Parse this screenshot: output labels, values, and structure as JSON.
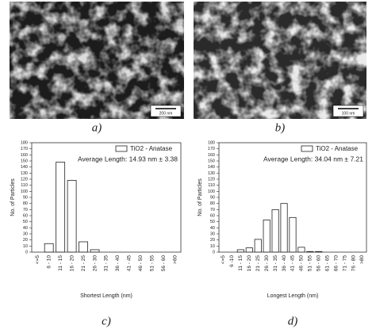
{
  "images": [
    {
      "scale_bar": "200 nm",
      "caption": "a)"
    },
    {
      "scale_bar": "100 nm",
      "caption": "b)"
    }
  ],
  "chart_data": [
    {
      "type": "bar",
      "caption": "c)",
      "annotation": "Average Length: 14.93 nm ± 3.38",
      "xlabel": "Shortest Length (nm)",
      "ylabel": "No. of Particles",
      "categories": [
        "<=5",
        "6 - 10",
        "11 - 15",
        "16 - 20",
        "21 - 25",
        "26 - 30",
        "31 - 35",
        "36 - 40",
        "41 - 45",
        "46 - 50",
        "51 - 55",
        "56 - 60",
        ">60"
      ],
      "series": [
        {
          "name": "TiO2 - Anatase",
          "color": "#ffffff",
          "values": [
            0,
            14,
            148,
            118,
            17,
            4,
            0,
            0,
            0,
            0,
            0,
            0,
            0
          ]
        }
      ],
      "ylim": [
        0,
        180
      ],
      "yticks": [
        0,
        10,
        20,
        30,
        40,
        50,
        60,
        70,
        80,
        90,
        100,
        110,
        120,
        130,
        140,
        150,
        160,
        170,
        180
      ],
      "legend": "top-right"
    },
    {
      "type": "bar",
      "caption": "d)",
      "annotation": "Average Length: 34.04 nm ± 7.21",
      "xlabel": "Longest Length (nm)",
      "ylabel": "No. of Particles",
      "categories": [
        "<=5",
        "6 -10",
        "11 - 15",
        "16 - 20",
        "21 - 25",
        "26 - 30",
        "31 - 35",
        "36 - 40",
        "41 - 45",
        "46 - 50",
        "51 - 55",
        "56 - 60",
        "61 - 65",
        "66 - 70",
        "71 - 75",
        "76 - 80",
        ">80"
      ],
      "series": [
        {
          "name": "TiO2 - Anatase",
          "color": "#ffffff",
          "values": [
            0,
            0,
            4,
            7,
            21,
            53,
            70,
            80,
            57,
            8,
            1,
            1,
            0,
            0,
            0,
            0,
            0
          ]
        }
      ],
      "ylim": [
        0,
        180
      ],
      "yticks": [
        0,
        10,
        20,
        30,
        40,
        50,
        60,
        70,
        80,
        90,
        100,
        110,
        120,
        130,
        140,
        150,
        160,
        170,
        180
      ],
      "legend": "top-right"
    }
  ]
}
